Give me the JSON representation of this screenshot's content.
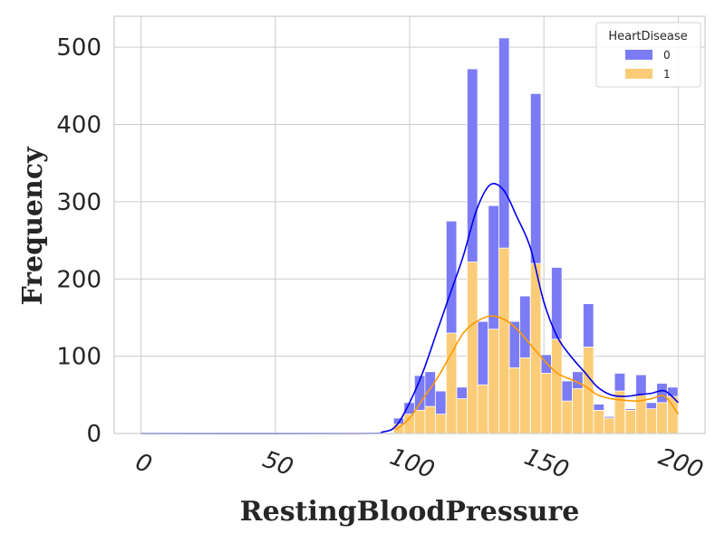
{
  "chart_data": {
    "type": "bar",
    "xlabel": "RestingBloodPressure",
    "ylabel": "Frequency",
    "xlim": [
      -10,
      210
    ],
    "ylim": [
      0,
      540
    ],
    "xticks": [
      "0",
      "50",
      "100",
      "150",
      "200"
    ],
    "yticks": [
      "0",
      "100",
      "200",
      "300",
      "400",
      "500"
    ],
    "grid": true,
    "legend": {
      "title": "HeartDisease",
      "position": "top-right",
      "entries": [
        "0",
        "1"
      ]
    },
    "colors": {
      "series0": "#7b7bf5",
      "series1": "#fbcc78",
      "kde0": "#0000ee",
      "kde1": "#ff9900",
      "grid": "#cccccc",
      "axes": "#cccccc"
    },
    "bin_width": 3.92,
    "bin_starts": [
      94.0,
      97.9,
      101.8,
      105.7,
      109.6,
      113.6,
      117.5,
      121.4,
      125.3,
      129.3,
      133.2,
      137.1,
      141.0,
      145.0,
      148.9,
      152.8,
      156.7,
      160.6,
      164.6,
      168.5,
      172.4,
      176.3,
      180.3,
      184.2,
      188.1,
      192.0,
      196.0
    ],
    "series": [
      {
        "name": "0",
        "stacked_totals": [
          20,
          40,
          75,
          80,
          55,
          275,
          60,
          472,
          145,
          295,
          512,
          145,
          178,
          440,
          102,
          215,
          68,
          80,
          168,
          38,
          22,
          78,
          32,
          76,
          40,
          65,
          60
        ]
      },
      {
        "name": "1",
        "values": [
          12,
          25,
          30,
          35,
          25,
          130,
          45,
          222,
          63,
          135,
          240,
          85,
          98,
          220,
          78,
          122,
          42,
          58,
          112,
          30,
          20,
          55,
          30,
          50,
          32,
          40,
          48
        ]
      }
    ],
    "kde": [
      {
        "name": "0",
        "points": [
          [
            0,
            0
          ],
          [
            80,
            0
          ],
          [
            90,
            2
          ],
          [
            95,
            10
          ],
          [
            100,
            40
          ],
          [
            105,
            80
          ],
          [
            110,
            130
          ],
          [
            115,
            180
          ],
          [
            120,
            230
          ],
          [
            125,
            290
          ],
          [
            130,
            322
          ],
          [
            135,
            315
          ],
          [
            140,
            280
          ],
          [
            145,
            240
          ],
          [
            150,
            170
          ],
          [
            155,
            125
          ],
          [
            160,
            100
          ],
          [
            165,
            80
          ],
          [
            170,
            60
          ],
          [
            175,
            50
          ],
          [
            180,
            48
          ],
          [
            185,
            50
          ],
          [
            190,
            52
          ],
          [
            195,
            55
          ],
          [
            200,
            40
          ]
        ]
      },
      {
        "name": "1",
        "points": [
          [
            95,
            5
          ],
          [
            100,
            20
          ],
          [
            105,
            45
          ],
          [
            110,
            70
          ],
          [
            115,
            100
          ],
          [
            120,
            130
          ],
          [
            125,
            145
          ],
          [
            130,
            152
          ],
          [
            135,
            148
          ],
          [
            140,
            135
          ],
          [
            145,
            115
          ],
          [
            150,
            95
          ],
          [
            155,
            78
          ],
          [
            160,
            70
          ],
          [
            165,
            62
          ],
          [
            170,
            50
          ],
          [
            175,
            45
          ],
          [
            180,
            43
          ],
          [
            185,
            42
          ],
          [
            190,
            45
          ],
          [
            195,
            48
          ],
          [
            200,
            25
          ]
        ]
      }
    ]
  }
}
